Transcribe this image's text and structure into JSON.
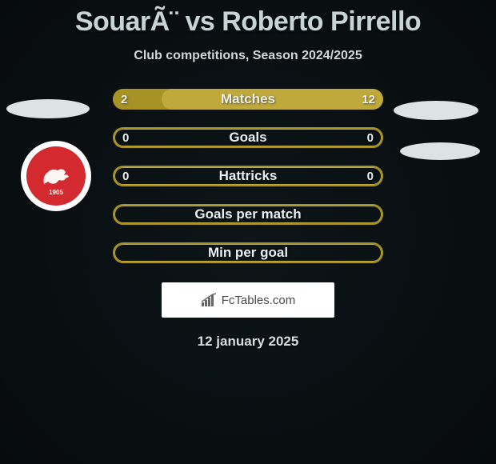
{
  "title": "SouarÃ¨ vs Roberto Pirrello",
  "subtitle": "Club competitions, Season 2024/2025",
  "date": "12 january 2025",
  "brand": {
    "name": "FcTables.com"
  },
  "bar_colors": {
    "primary": "#a69225",
    "primary_light": "#bfa93a",
    "border": "#8d7d1f",
    "text": "#e9eef0"
  },
  "rows": [
    {
      "label": "Matches",
      "left": "2",
      "right": "12",
      "left_w": 0.18,
      "right_w": 0.82
    },
    {
      "label": "Goals",
      "left": "0",
      "right": "0",
      "left_w": 1.0,
      "right_w": 0.0
    },
    {
      "label": "Hattricks",
      "left": "0",
      "right": "0",
      "left_w": 1.0,
      "right_w": 0.0
    },
    {
      "label": "Goals per match",
      "left": "",
      "right": "",
      "left_w": 1.0,
      "right_w": 0.0
    },
    {
      "label": "Min per goal",
      "left": "",
      "right": "",
      "left_w": 1.0,
      "right_w": 0.0
    }
  ],
  "crest": {
    "name": "PERUGIA",
    "year": "1905"
  }
}
